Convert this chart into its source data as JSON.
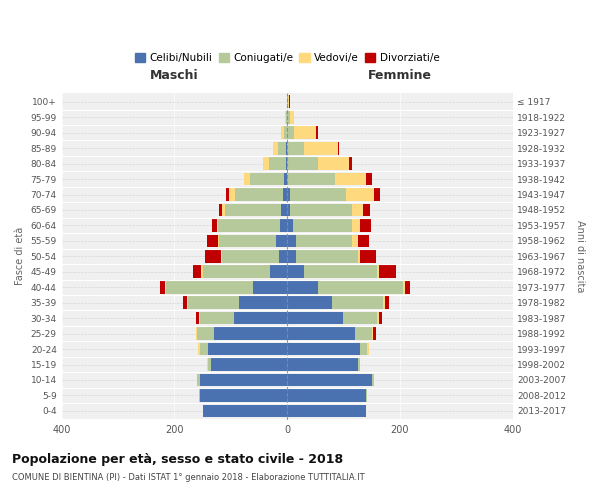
{
  "age_groups": [
    "0-4",
    "5-9",
    "10-14",
    "15-19",
    "20-24",
    "25-29",
    "30-34",
    "35-39",
    "40-44",
    "45-49",
    "50-54",
    "55-59",
    "60-64",
    "65-69",
    "70-74",
    "75-79",
    "80-84",
    "85-89",
    "90-94",
    "95-99",
    "100+"
  ],
  "birth_years": [
    "2013-2017",
    "2008-2012",
    "2003-2007",
    "1998-2002",
    "1993-1997",
    "1988-1992",
    "1983-1987",
    "1978-1982",
    "1973-1977",
    "1968-1972",
    "1963-1967",
    "1958-1962",
    "1953-1957",
    "1948-1952",
    "1943-1947",
    "1938-1942",
    "1933-1937",
    "1928-1932",
    "1923-1927",
    "1918-1922",
    "≤ 1917"
  ],
  "maschi": {
    "celibi": [
      150,
      155,
      155,
      135,
      140,
      130,
      95,
      85,
      60,
      30,
      15,
      20,
      12,
      10,
      8,
      5,
      2,
      2,
      0,
      0,
      0
    ],
    "coniugati": [
      0,
      2,
      5,
      5,
      15,
      30,
      60,
      90,
      155,
      120,
      100,
      100,
      110,
      100,
      85,
      60,
      30,
      15,
      5,
      2,
      0
    ],
    "vedovi": [
      0,
      0,
      0,
      2,
      3,
      2,
      2,
      2,
      2,
      2,
      2,
      2,
      3,
      5,
      10,
      12,
      10,
      8,
      5,
      2,
      0
    ],
    "divorziati": [
      0,
      0,
      0,
      0,
      0,
      0,
      5,
      8,
      8,
      15,
      28,
      20,
      8,
      5,
      5,
      0,
      0,
      0,
      0,
      0,
      0
    ]
  },
  "femmine": {
    "nubili": [
      140,
      140,
      150,
      125,
      130,
      120,
      100,
      80,
      55,
      30,
      15,
      15,
      10,
      5,
      5,
      0,
      0,
      0,
      0,
      0,
      0
    ],
    "coniugate": [
      0,
      2,
      5,
      5,
      12,
      30,
      60,
      90,
      150,
      130,
      110,
      100,
      105,
      110,
      100,
      85,
      55,
      30,
      12,
      5,
      2
    ],
    "vedove": [
      0,
      0,
      0,
      0,
      3,
      3,
      3,
      3,
      5,
      3,
      5,
      10,
      15,
      20,
      50,
      55,
      55,
      60,
      40,
      8,
      2
    ],
    "divorziate": [
      0,
      0,
      0,
      0,
      0,
      5,
      5,
      8,
      8,
      30,
      28,
      20,
      18,
      12,
      10,
      10,
      5,
      2,
      2,
      0,
      2
    ]
  },
  "colors": {
    "celibi": "#4a72b0",
    "coniugati": "#b5c99a",
    "vedovi": "#ffd97d",
    "divorziati": "#c00000"
  },
  "xlim": 400,
  "title": "Popolazione per età, sesso e stato civile - 2018",
  "subtitle": "COMUNE DI BIENTINA (PI) - Dati ISTAT 1° gennaio 2018 - Elaborazione TUTTITALIA.IT",
  "ylabel_left": "Fasce di età",
  "ylabel_right": "Anni di nascita",
  "xlabel_left": "Maschi",
  "xlabel_right": "Femmine",
  "bg_color": "#f0f0f0",
  "grid_color": "#cccccc"
}
